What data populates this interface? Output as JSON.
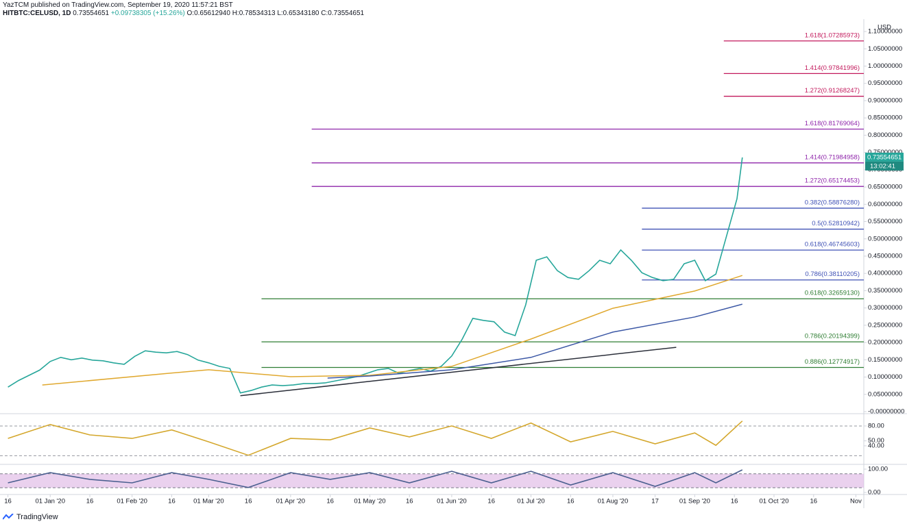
{
  "header": {
    "publisher": "YazTCM published on TradingView.com, September 19, 2020 11:57:21 BST",
    "symbol": "HITBTC:CELUSD, 1D",
    "last": "0.73554651",
    "change": "+0.09738305 (+15.26%)",
    "open": "O:0.65612940",
    "high": "H:0.78534313",
    "low": "L:0.65343180",
    "close": "C:0.73554651"
  },
  "chart_data": [
    {
      "type": "line",
      "currency": "USD",
      "xlim": [
        "2019-12-13",
        "2020-11-04"
      ],
      "xticks": [
        {
          "value": "2019-12-16",
          "label": "16"
        },
        {
          "value": "2020-01-01",
          "label": "01 Jan '20"
        },
        {
          "value": "2020-01-16",
          "label": "16"
        },
        {
          "value": "2020-02-01",
          "label": "01 Feb '20"
        },
        {
          "value": "2020-02-16",
          "label": "16"
        },
        {
          "value": "2020-03-01",
          "label": "01 Mar '20"
        },
        {
          "value": "2020-03-16",
          "label": "16"
        },
        {
          "value": "2020-04-01",
          "label": "01 Apr '20"
        },
        {
          "value": "2020-04-16",
          "label": "16"
        },
        {
          "value": "2020-05-01",
          "label": "01 May '20"
        },
        {
          "value": "2020-05-16",
          "label": "16"
        },
        {
          "value": "2020-06-01",
          "label": "01 Jun '20"
        },
        {
          "value": "2020-06-16",
          "label": "16"
        },
        {
          "value": "2020-07-01",
          "label": "01 Jul '20"
        },
        {
          "value": "2020-07-16",
          "label": "16"
        },
        {
          "value": "2020-08-01",
          "label": "01 Aug '20"
        },
        {
          "value": "2020-08-17",
          "label": "17"
        },
        {
          "value": "2020-09-01",
          "label": "01 Sep '20"
        },
        {
          "value": "2020-09-16",
          "label": "16"
        },
        {
          "value": "2020-10-01",
          "label": "01 Oct '20"
        },
        {
          "value": "2020-10-16",
          "label": "16"
        },
        {
          "value": "2020-11-01",
          "label": "Nov"
        }
      ],
      "ylim": [
        -0.004,
        1.1318
      ],
      "yticks": [
        {
          "value": 0,
          "label": "-0.00000000"
        },
        {
          "value": 0.05,
          "label": "0.05000000"
        },
        {
          "value": 0.1,
          "label": "0.10000000"
        },
        {
          "value": 0.15,
          "label": "0.15000000"
        },
        {
          "value": 0.2,
          "label": "0.20000000"
        },
        {
          "value": 0.25,
          "label": "0.25000000"
        },
        {
          "value": 0.3,
          "label": "0.30000000"
        },
        {
          "value": 0.35,
          "label": "0.35000000"
        },
        {
          "value": 0.4,
          "label": "0.40000000"
        },
        {
          "value": 0.45,
          "label": "0.45000000"
        },
        {
          "value": 0.5,
          "label": "0.50000000"
        },
        {
          "value": 0.55,
          "label": "0.55000000"
        },
        {
          "value": 0.6,
          "label": "0.60000000"
        },
        {
          "value": 0.65,
          "label": "0.65000000"
        },
        {
          "value": 0.7,
          "label": "0.70000000"
        },
        {
          "value": 0.75,
          "label": "0.75000000"
        },
        {
          "value": 0.8,
          "label": "0.80000000"
        },
        {
          "value": 0.85,
          "label": "0.85000000"
        },
        {
          "value": 0.9,
          "label": "0.90000000"
        },
        {
          "value": 0.95,
          "label": "0.95000000"
        },
        {
          "value": 1.0,
          "label": "1.00000000"
        },
        {
          "value": 1.05,
          "label": "1.05000000"
        },
        {
          "value": 1.1,
          "label": "1.10000000"
        }
      ],
      "series": [
        {
          "color": "#26a69a",
          "x": [
            "2019-12-16",
            "2019-12-20",
            "2019-12-24",
            "2019-12-28",
            "2020-01-01",
            "2020-01-05",
            "2020-01-09",
            "2020-01-13",
            "2020-01-17",
            "2020-01-21",
            "2020-01-25",
            "2020-01-29",
            "2020-02-02",
            "2020-02-06",
            "2020-02-10",
            "2020-02-14",
            "2020-02-18",
            "2020-02-22",
            "2020-02-26",
            "2020-03-01",
            "2020-03-05",
            "2020-03-09",
            "2020-03-13",
            "2020-03-17",
            "2020-03-21",
            "2020-03-25",
            "2020-03-29",
            "2020-04-02",
            "2020-04-06",
            "2020-04-10",
            "2020-04-14",
            "2020-04-18",
            "2020-04-22",
            "2020-04-26",
            "2020-04-30",
            "2020-05-04",
            "2020-05-08",
            "2020-05-12",
            "2020-05-16",
            "2020-05-20",
            "2020-05-24",
            "2020-05-28",
            "2020-06-01",
            "2020-06-05",
            "2020-06-09",
            "2020-06-13",
            "2020-06-17",
            "2020-06-21",
            "2020-06-25",
            "2020-06-29",
            "2020-07-03",
            "2020-07-07",
            "2020-07-11",
            "2020-07-15",
            "2020-07-19",
            "2020-07-23",
            "2020-07-27",
            "2020-07-31",
            "2020-08-04",
            "2020-08-08",
            "2020-08-12",
            "2020-08-16",
            "2020-08-20",
            "2020-08-24",
            "2020-08-28",
            "2020-09-01",
            "2020-09-05",
            "2020-09-09",
            "2020-09-13",
            "2020-09-17",
            "2020-09-19"
          ],
          "values": [
            0.071,
            0.09,
            0.105,
            0.12,
            0.145,
            0.157,
            0.15,
            0.155,
            0.149,
            0.147,
            0.141,
            0.137,
            0.16,
            0.176,
            0.172,
            0.17,
            0.174,
            0.165,
            0.149,
            0.141,
            0.131,
            0.125,
            0.054,
            0.061,
            0.071,
            0.077,
            0.075,
            0.077,
            0.081,
            0.081,
            0.083,
            0.089,
            0.095,
            0.101,
            0.111,
            0.121,
            0.125,
            0.111,
            0.119,
            0.125,
            0.117,
            0.131,
            0.161,
            0.21,
            0.27,
            0.264,
            0.26,
            0.23,
            0.22,
            0.309,
            0.438,
            0.448,
            0.408,
            0.388,
            0.383,
            0.408,
            0.438,
            0.428,
            0.468,
            0.438,
            0.402,
            0.388,
            0.379,
            0.383,
            0.428,
            0.438,
            0.379,
            0.398,
            0.507,
            0.616,
            0.73554651
          ]
        },
        {
          "color": "#e0a82e",
          "x": [
            "2019-12-29",
            "2020-02-15",
            "2020-03-01",
            "2020-04-01",
            "2020-05-01",
            "2020-06-01",
            "2020-07-01",
            "2020-08-01",
            "2020-09-01",
            "2020-09-19"
          ],
          "values": [
            0.077,
            0.111,
            0.121,
            0.101,
            0.105,
            0.131,
            0.21,
            0.299,
            0.349,
            0.394
          ]
        },
        {
          "color": "#3b57a5",
          "x": [
            "2020-04-15",
            "2020-05-01",
            "2020-06-01",
            "2020-07-01",
            "2020-08-01",
            "2020-09-01",
            "2020-09-19"
          ],
          "values": [
            0.097,
            0.103,
            0.121,
            0.157,
            0.23,
            0.274,
            0.311
          ]
        },
        {
          "color": "#2a2e39",
          "x": [
            "2020-03-13",
            "2020-08-25"
          ],
          "values": [
            0.046,
            0.186
          ]
        }
      ],
      "levels": [
        {
          "label": "1.618(1.07285973)",
          "value": 1.07285973,
          "from": "2020-09-12",
          "color": "#c2185b"
        },
        {
          "label": "1.414(0.97841996)",
          "value": 0.97841996,
          "from": "2020-09-12",
          "color": "#c2185b"
        },
        {
          "label": "1.272(0.91268247)",
          "value": 0.91268247,
          "from": "2020-09-12",
          "color": "#c2185b"
        },
        {
          "label": "1.618(0.81769064)",
          "value": 0.81769064,
          "from": "2020-04-09",
          "color": "#8e24aa"
        },
        {
          "label": "1.414(0.71984958)",
          "value": 0.71984958,
          "from": "2020-04-09",
          "color": "#8e24aa"
        },
        {
          "label": "1.272(0.65174453)",
          "value": 0.65174453,
          "from": "2020-04-09",
          "color": "#8e24aa"
        },
        {
          "label": "0.382(0.58876280)",
          "value": 0.5887628,
          "from": "2020-08-12",
          "color": "#3f51b5"
        },
        {
          "label": "0.5(0.52810942)",
          "value": 0.52810942,
          "from": "2020-08-12",
          "color": "#3f51b5"
        },
        {
          "label": "0.618(0.46745603)",
          "value": 0.46745603,
          "from": "2020-08-12",
          "color": "#3f51b5"
        },
        {
          "label": "0.786(0.38110205)",
          "value": 0.38110205,
          "from": "2020-08-12",
          "color": "#3f51b5"
        },
        {
          "label": "0.618(0.32659130)",
          "value": 0.3265913,
          "from": "2020-03-21",
          "color": "#2e7d32"
        },
        {
          "label": "0.786(0.20194399)",
          "value": 0.20194399,
          "from": "2020-03-21",
          "color": "#2e7d32"
        },
        {
          "label": "0.886(0.12774917)",
          "value": 0.12774917,
          "from": "2020-03-21",
          "color": "#2e7d32"
        }
      ],
      "last_label": "0.73554651",
      "countdown": "13:02:41"
    },
    {
      "type": "line",
      "xlim": [
        "2019-12-13",
        "2020-11-04"
      ],
      "x": [
        "2019-12-16",
        "2020-01-01",
        "2020-01-16",
        "2020-02-01",
        "2020-02-16",
        "2020-03-01",
        "2020-03-16",
        "2020-04-01",
        "2020-04-16",
        "2020-05-01",
        "2020-05-16",
        "2020-06-01",
        "2020-06-16",
        "2020-07-01",
        "2020-07-16",
        "2020-08-01",
        "2020-08-17",
        "2020-09-01",
        "2020-09-09",
        "2020-09-19"
      ],
      "ylim": [
        4,
        103.4
      ],
      "yticks": [
        {
          "value": 80,
          "label": "80.00"
        },
        {
          "value": 50,
          "label": "50.00"
        },
        {
          "value": 40,
          "label": "40.00"
        }
      ],
      "dashed_levels": [
        80,
        20
      ],
      "series": [
        {
          "color": "#d4a72c",
          "values": [
            55,
            83,
            62,
            55,
            72,
            48,
            21,
            55,
            52,
            76,
            58,
            80,
            55,
            86,
            48,
            69,
            44,
            66,
            41,
            90
          ]
        }
      ]
    },
    {
      "type": "line",
      "xlim": [
        "2019-12-13",
        "2020-11-04"
      ],
      "x": [
        "2019-12-16",
        "2020-01-01",
        "2020-01-16",
        "2020-02-01",
        "2020-02-16",
        "2020-03-01",
        "2020-03-16",
        "2020-04-01",
        "2020-04-16",
        "2020-05-01",
        "2020-05-16",
        "2020-06-01",
        "2020-06-16",
        "2020-07-01",
        "2020-07-16",
        "2020-08-01",
        "2020-08-17",
        "2020-09-01",
        "2020-09-09",
        "2020-09-19"
      ],
      "ylim": [
        -3,
        114.7
      ],
      "yticks": [
        {
          "value": 100,
          "label": "100.00"
        },
        {
          "value": 0,
          "label": "0.00"
        }
      ],
      "band": [
        20,
        80
      ],
      "band_color": "#e1bee7",
      "series": [
        {
          "color": "#4a5f8f",
          "values": [
            41,
            85,
            56,
            41,
            85,
            56,
            21,
            85,
            56,
            85,
            41,
            91,
            41,
            91,
            32,
            85,
            26,
            85,
            41,
            97
          ]
        }
      ]
    }
  ],
  "footer": {
    "brand": "TradingView"
  }
}
